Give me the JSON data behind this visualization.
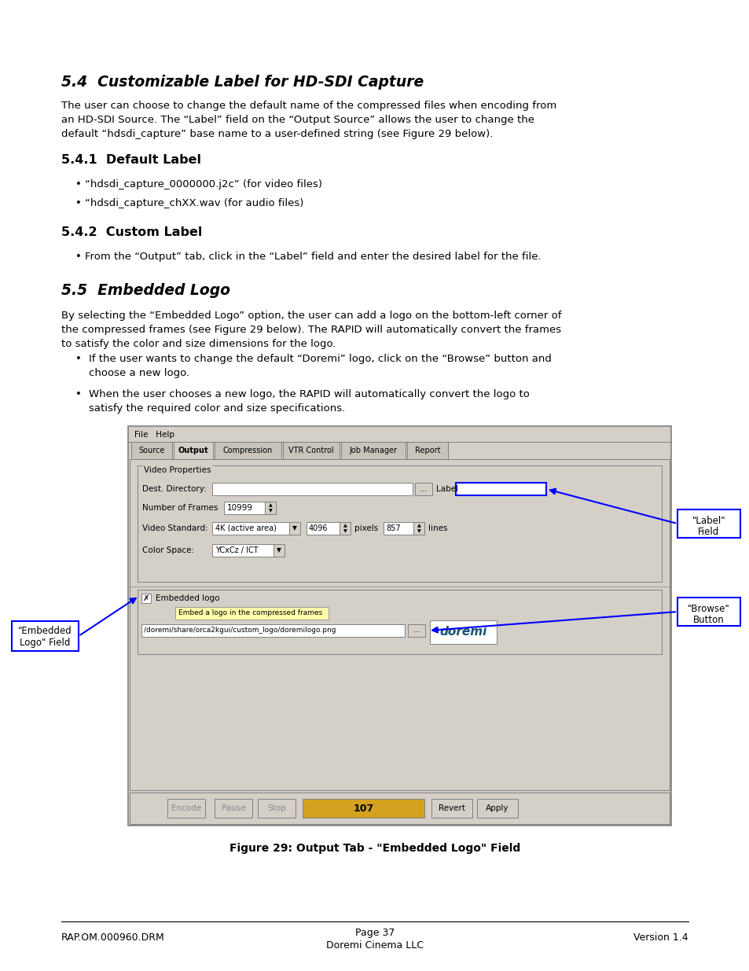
{
  "title_54": "5.4  Customizable Label for HD-SDI Capture",
  "body_54_1": "The user can choose to change the default name of the compressed files when encoding from",
  "body_54_2": "an HD-SDI Source. The “Label” field on the “Output Source” allows the user to change the",
  "body_54_3": "default “hdsdi_capture” base name to a user-defined string (see Figure 29 below).",
  "title_541": "5.4.1  Default Label",
  "bullet_541_1": "“hdsdi_capture_0000000.j2c” (for video files)",
  "bullet_541_2": "“hdsdi_capture_chXX.wav (for audio files)",
  "title_542": "5.4.2  Custom Label",
  "bullet_542_1": "From the “Output” tab, click in the “Label” field and enter the desired label for the file.",
  "title_55": "5.5  Embedded Logo",
  "body_55_1": "By selecting the “Embedded Logo” option, the user can add a logo on the bottom-left corner of",
  "body_55_2": "the compressed frames (see Figure 29 below). The RAPID will automatically convert the frames",
  "body_55_3": "to satisfy the color and size dimensions for the logo.",
  "bullet_55_1a": "If the user wants to change the default “Doremi” logo, click on the “Browse” button and",
  "bullet_55_1b": "choose a new logo.",
  "bullet_55_2a": "When the user chooses a new logo, the RAPID will automatically convert the logo to",
  "bullet_55_2b": "satisfy the required color and size specifications.",
  "figure_caption": "Figure 29: Output Tab - \"Embedded Logo\" Field",
  "footer_left": "RAP.OM.000960.DRM",
  "footer_center_1": "Page 37",
  "footer_center_2": "Doremi Cinema LLC",
  "footer_right": "Version 1.4",
  "bg_color": "#ffffff",
  "text_color": "#000000",
  "gui_bg": "#d4d0c8",
  "gui_border": "#808080",
  "white": "#ffffff",
  "blue_callout": "#0000ff",
  "progress_color": "#d4a020"
}
